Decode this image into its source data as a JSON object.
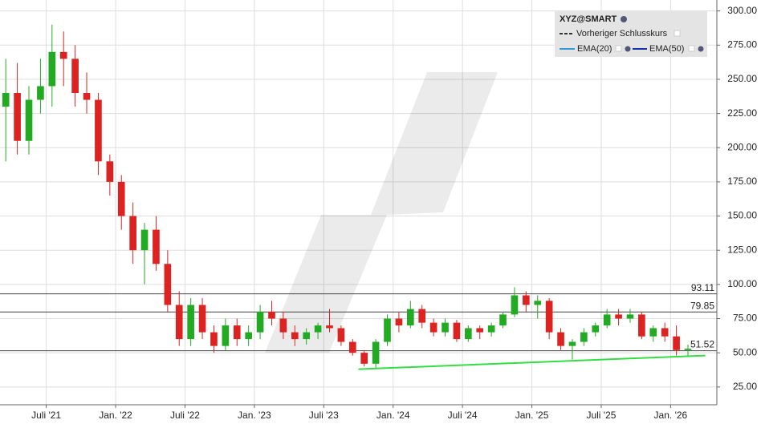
{
  "chart_data": {
    "type": "candlestick",
    "title": "XYZ@SMART",
    "legend": [
      "Vorheriger Schlusskurs",
      "EMA(20)",
      "EMA(50)"
    ],
    "legend_colors": [
      "#333333",
      "#3399dd",
      "#1133aa"
    ],
    "up_color": "#22aa22",
    "down_color": "#dd2222",
    "x": [
      "2021-03",
      "2021-04",
      "2021-05",
      "2021-06",
      "2021-07",
      "2021-08",
      "2021-09",
      "2021-10",
      "2021-11",
      "2021-12",
      "2022-01",
      "2022-02",
      "2022-03",
      "2022-04",
      "2022-05",
      "2022-06",
      "2022-07",
      "2022-08",
      "2022-09",
      "2022-10",
      "2022-11",
      "2022-12",
      "2023-01",
      "2023-02",
      "2023-03",
      "2023-04",
      "2023-05",
      "2023-06",
      "2023-07",
      "2023-08",
      "2023-09",
      "2023-10",
      "2023-11",
      "2023-12",
      "2024-01",
      "2024-02",
      "2024-03",
      "2024-04",
      "2024-05",
      "2024-06",
      "2024-07",
      "2024-08",
      "2024-09",
      "2024-10",
      "2024-11",
      "2024-12",
      "2025-01",
      "2025-02",
      "2025-03",
      "2025-04",
      "2025-05",
      "2025-06",
      "2025-07",
      "2025-08",
      "2025-09",
      "2025-10",
      "2025-11",
      "2025-12",
      "2026-01",
      "2026-02"
    ],
    "open": [
      230,
      240,
      205,
      235,
      245,
      270,
      265,
      240,
      235,
      190,
      175,
      150,
      125,
      140,
      115,
      85,
      60,
      85,
      65,
      55,
      70,
      60,
      65,
      80,
      75,
      65,
      60,
      65,
      70,
      68,
      58,
      50,
      42,
      58,
      75,
      70,
      82,
      72,
      65,
      72,
      60,
      68,
      65,
      70,
      78,
      92,
      85,
      88,
      65,
      55,
      58,
      65,
      70,
      78,
      75,
      78,
      62,
      68,
      62,
      52
    ],
    "high": [
      265,
      262,
      245,
      265,
      290,
      285,
      275,
      255,
      240,
      195,
      180,
      160,
      145,
      150,
      125,
      95,
      90,
      90,
      70,
      75,
      75,
      70,
      85,
      88,
      80,
      70,
      68,
      72,
      82,
      70,
      60,
      52,
      60,
      78,
      80,
      88,
      85,
      75,
      75,
      74,
      70,
      70,
      72,
      80,
      98,
      95,
      92,
      90,
      68,
      60,
      68,
      72,
      82,
      82,
      82,
      80,
      70,
      72,
      70,
      56
    ],
    "low": [
      190,
      195,
      195,
      225,
      230,
      245,
      230,
      225,
      180,
      165,
      140,
      115,
      100,
      110,
      80,
      55,
      55,
      60,
      50,
      52,
      55,
      55,
      60,
      70,
      60,
      55,
      56,
      60,
      65,
      55,
      48,
      40,
      38,
      55,
      65,
      68,
      68,
      62,
      62,
      58,
      58,
      60,
      62,
      68,
      76,
      80,
      75,
      60,
      52,
      45,
      55,
      62,
      68,
      70,
      72,
      60,
      58,
      58,
      48,
      47
    ],
    "close": [
      240,
      205,
      235,
      245,
      270,
      265,
      240,
      235,
      190,
      175,
      150,
      125,
      140,
      115,
      85,
      60,
      85,
      65,
      55,
      70,
      60,
      65,
      80,
      75,
      65,
      60,
      65,
      70,
      68,
      58,
      50,
      42,
      58,
      75,
      70,
      82,
      72,
      65,
      72,
      60,
      68,
      65,
      70,
      78,
      92,
      85,
      88,
      65,
      55,
      58,
      65,
      70,
      78,
      75,
      78,
      62,
      68,
      62,
      52,
      53
    ],
    "levels": [
      93.11,
      79.85,
      51.52
    ],
    "trendline": {
      "color": "#33dd44",
      "x": [
        "2023-10",
        "2026-04"
      ],
      "values": [
        38,
        48
      ]
    },
    "xlim": [
      "2021-03",
      "2026-05"
    ],
    "xticks": [
      {
        "value": "2021-07",
        "label": "Juli '21"
      },
      {
        "value": "2022-01",
        "label": "Jan. '22"
      },
      {
        "value": "2022-07",
        "label": "Juli '22"
      },
      {
        "value": "2023-01",
        "label": "Jan. '23"
      },
      {
        "value": "2023-07",
        "label": "Juli '23"
      },
      {
        "value": "2024-01",
        "label": "Jan. '24"
      },
      {
        "value": "2024-07",
        "label": "Juli '24"
      },
      {
        "value": "2025-01",
        "label": "Jan. '25"
      },
      {
        "value": "2025-07",
        "label": "Juli '25"
      },
      {
        "value": "2026-01",
        "label": "Jan. '26"
      }
    ],
    "ylim": [
      12,
      308
    ],
    "yticks": [
      {
        "value": 25,
        "label": "25.00"
      },
      {
        "value": 50,
        "label": "50.00"
      },
      {
        "value": 75,
        "label": "75.00"
      },
      {
        "value": 100,
        "label": "100.00"
      },
      {
        "value": 125,
        "label": "125.00"
      },
      {
        "value": 150,
        "label": "150.00"
      },
      {
        "value": 175,
        "label": "175.00"
      },
      {
        "value": 200,
        "label": "200.00"
      },
      {
        "value": 225,
        "label": "225.00"
      },
      {
        "value": 250,
        "label": "250.00"
      },
      {
        "value": 275,
        "label": "275.00"
      },
      {
        "value": 300,
        "label": "300.00"
      }
    ],
    "grid": true
  }
}
